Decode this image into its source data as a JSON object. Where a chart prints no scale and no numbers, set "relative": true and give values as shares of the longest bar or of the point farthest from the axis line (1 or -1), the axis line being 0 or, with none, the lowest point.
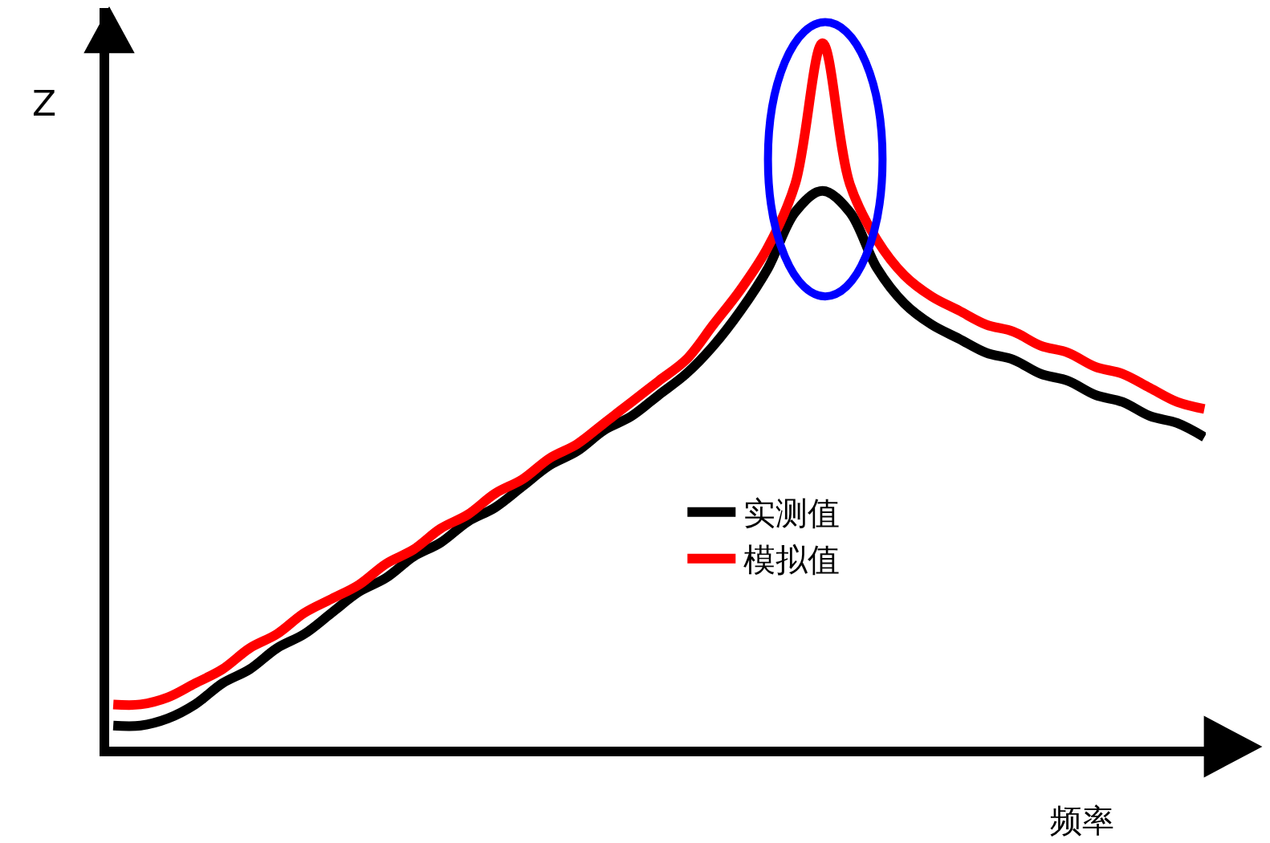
{
  "chart_data": {
    "type": "line",
    "relative": true,
    "xlabel": "频率",
    "ylabel": "Z",
    "legend": "right",
    "marker": "none",
    "line_style": "solid",
    "categories": [
      null,
      null,
      null,
      null,
      null,
      null,
      null,
      null,
      null,
      null,
      null,
      null,
      null,
      null,
      null,
      null,
      null,
      null,
      null,
      null,
      null,
      null,
      null,
      null,
      null,
      null,
      null,
      null,
      null,
      null,
      null,
      null,
      null,
      null,
      null,
      null,
      null,
      null,
      null,
      null,
      null
    ],
    "series": [
      {
        "name": "实测值",
        "color": "#000000",
        "values": [
          0.03,
          0.03,
          0.04,
          0.06,
          0.09,
          0.11,
          0.14,
          0.16,
          0.19,
          0.22,
          0.24,
          0.27,
          0.29,
          0.32,
          0.34,
          0.37,
          0.4,
          0.42,
          0.45,
          0.47,
          0.5,
          0.53,
          0.57,
          0.62,
          0.68,
          0.76,
          0.79,
          0.76,
          0.68,
          0.63,
          0.6,
          0.58,
          0.56,
          0.55,
          0.53,
          0.52,
          0.5,
          0.49,
          0.47,
          0.46,
          0.44
        ]
      },
      {
        "name": "模拟值",
        "color": "#ff0000",
        "values": [
          0.06,
          0.06,
          0.07,
          0.09,
          0.11,
          0.14,
          0.16,
          0.19,
          0.21,
          0.23,
          0.26,
          0.28,
          0.31,
          0.33,
          0.36,
          0.38,
          0.41,
          0.43,
          0.46,
          0.49,
          0.52,
          0.55,
          0.6,
          0.65,
          0.71,
          0.8,
          1.0,
          0.8,
          0.72,
          0.67,
          0.64,
          0.62,
          0.6,
          0.59,
          0.57,
          0.56,
          0.54,
          0.53,
          0.51,
          0.49,
          0.48
        ]
      }
    ]
  }
}
